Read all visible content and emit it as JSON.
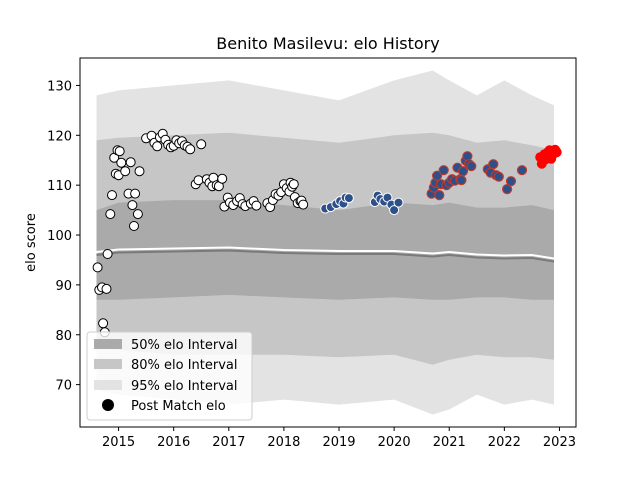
{
  "chart_data": {
    "type": "scatter",
    "title": "Benito Masilevu: elo History",
    "xlabel": "",
    "ylabel": "elo score",
    "xlim": [
      2014.3,
      2023.3
    ],
    "ylim": [
      61.5,
      135.5
    ],
    "x_ticks": [
      "2015",
      "2016",
      "2017",
      "2018",
      "2019",
      "2020",
      "2021",
      "2022",
      "2023"
    ],
    "y_ticks": [
      "70",
      "80",
      "90",
      "100",
      "110",
      "120",
      "130"
    ],
    "grid": false,
    "legend": {
      "placement": "lower-left",
      "entries": [
        "50% elo Interval",
        "80% elo Interval",
        "95% elo Interval",
        "Post Match elo"
      ]
    },
    "colors": {
      "band95": "#e3e3e3",
      "band80": "#c6c6c6",
      "band50": "#aaaaaa",
      "median_light": "#ffffff",
      "median_dark": "#7a7a7a",
      "white_point": "#ffffff",
      "blue_point": "#2d4f8a",
      "blue_point_edge_red": "#c0392b",
      "red_point": "#ff0000"
    },
    "bands": {
      "x": [
        2014.6,
        2015.0,
        2016.0,
        2017.0,
        2018.0,
        2019.0,
        2020.0,
        2020.7,
        2021.0,
        2021.5,
        2022.0,
        2022.5,
        2022.9
      ],
      "p95_hi": [
        128,
        129,
        130,
        131,
        129,
        127,
        131,
        133,
        131,
        128,
        131,
        128,
        126
      ],
      "p95_lo": [
        69,
        68,
        67,
        66,
        67,
        66,
        67,
        64,
        65,
        68,
        66,
        67,
        66
      ],
      "p80_hi": [
        119,
        119.5,
        120,
        120.5,
        119.5,
        118.5,
        120,
        120.5,
        120,
        118.5,
        119,
        118,
        117
      ],
      "p80_lo": [
        78,
        77,
        76,
        76,
        76,
        75.5,
        76,
        74,
        75,
        76,
        75.5,
        75.5,
        75
      ],
      "p50_hi": [
        105,
        106.5,
        107,
        107,
        106,
        105,
        106.5,
        106,
        106.5,
        105.5,
        105.5,
        106,
        105
      ],
      "p50_lo": [
        87,
        87,
        87.5,
        88,
        87.5,
        87,
        87.5,
        87,
        87,
        87.5,
        87.5,
        87,
        87
      ],
      "median": [
        96.3,
        96.8,
        97.0,
        97.2,
        96.7,
        96.5,
        96.5,
        96.0,
        96.3,
        95.8,
        95.6,
        95.7,
        95.0
      ]
    },
    "series": [
      {
        "style": "white",
        "x": [
          2014.62,
          2014.65,
          2014.7,
          2014.72,
          2014.75,
          2014.78,
          2014.8,
          2014.85,
          2014.88,
          2014.92,
          2014.95,
          2014.98,
          2015.0,
          2015.02,
          2015.05,
          2015.12,
          2015.18,
          2015.22,
          2015.25,
          2015.28,
          2015.3,
          2015.35,
          2015.38,
          2015.5,
          2015.6,
          2015.65,
          2015.7,
          2015.75,
          2015.8,
          2015.85,
          2015.9,
          2015.95,
          2016.0,
          2016.05,
          2016.1,
          2016.15,
          2016.2,
          2016.25,
          2016.3,
          2016.4,
          2016.45,
          2016.5,
          2016.6,
          2016.65,
          2016.7,
          2016.72,
          2016.78,
          2016.82,
          2016.88,
          2016.92,
          2016.98,
          2017.02,
          2017.08,
          2017.15,
          2017.2,
          2017.25,
          2017.3,
          2017.4,
          2017.45,
          2017.5,
          2017.7,
          2017.75,
          2017.8,
          2017.85,
          2017.9,
          2017.95,
          2018.0,
          2018.05,
          2018.1,
          2018.12,
          2018.15,
          2018.18,
          2018.2,
          2018.25,
          2018.3,
          2018.32,
          2018.35
        ],
        "y": [
          93.5,
          89.0,
          89.5,
          82.3,
          80.5,
          89.2,
          96.2,
          104.2,
          108.0,
          115.5,
          112.3,
          117.0,
          112.0,
          116.8,
          114.5,
          112.8,
          108.3,
          114.6,
          106.0,
          101.8,
          108.3,
          104.2,
          112.8,
          119.4,
          119.9,
          118.5,
          117.8,
          119.6,
          120.3,
          119.1,
          118.1,
          117.6,
          117.9,
          119.0,
          118.4,
          118.8,
          118.0,
          117.7,
          117.2,
          110.2,
          111.0,
          118.2,
          111.2,
          110.5,
          109.8,
          111.5,
          110.0,
          109.8,
          111.3,
          105.7,
          107.5,
          106.5,
          106.0,
          106.8,
          107.4,
          106.2,
          105.8,
          106.3,
          106.8,
          105.9,
          106.4,
          105.6,
          107.0,
          108.2,
          107.9,
          108.6,
          110.2,
          109.4,
          108.7,
          110.5,
          109.7,
          110.2,
          107.6,
          106.4,
          106.8,
          106.9,
          106.1
        ]
      },
      {
        "style": "blue",
        "x": [
          2018.75,
          2018.85,
          2018.95,
          2019.02,
          2019.08,
          2019.12,
          2019.18,
          2019.65,
          2019.7,
          2019.75,
          2019.82,
          2019.88,
          2019.95,
          2020.0,
          2020.08
        ],
        "y": [
          105.3,
          105.6,
          106.2,
          106.8,
          106.3,
          107.5,
          107.4,
          106.6,
          107.9,
          107.2,
          106.7,
          107.5,
          106.1,
          105.0,
          106.5
        ]
      },
      {
        "style": "blue-red",
        "x": [
          2020.68,
          2020.72,
          2020.75,
          2020.78,
          2020.82,
          2020.85,
          2020.9,
          2020.95,
          2021.0,
          2021.05,
          2021.1,
          2021.15,
          2021.2,
          2021.22,
          2021.25,
          2021.3,
          2021.33,
          2021.36,
          2021.4,
          2021.7,
          2021.75,
          2021.8,
          2021.85,
          2021.9,
          2022.05,
          2022.12,
          2022.32
        ],
        "y": [
          108.3,
          109.5,
          110.5,
          111.9,
          108.0,
          110.2,
          113.0,
          110.0,
          110.5,
          111.2,
          110.9,
          113.5,
          111.2,
          111.0,
          112.8,
          114.9,
          115.8,
          114.2,
          113.8,
          113.2,
          112.5,
          114.2,
          112.0,
          111.7,
          109.2,
          110.8,
          113.0
        ]
      },
      {
        "style": "red",
        "x": [
          2022.65,
          2022.68,
          2022.7,
          2022.73,
          2022.75,
          2022.78,
          2022.8,
          2022.82,
          2022.85,
          2022.87,
          2022.9,
          2022.92,
          2022.95
        ],
        "y": [
          115.6,
          114.3,
          114.9,
          116.2,
          115.2,
          115.8,
          116.7,
          117.0,
          115.3,
          116.0,
          116.4,
          117.1,
          116.6
        ]
      }
    ]
  }
}
